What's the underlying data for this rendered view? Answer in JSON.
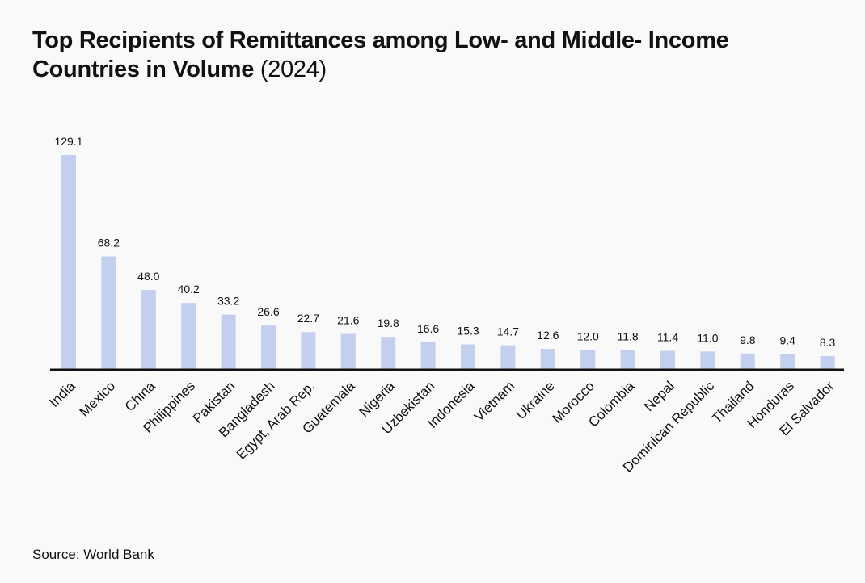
{
  "title": {
    "main": "Top Recipients of Remittances among Low- and Middle- Income Countries in Volume",
    "year": "(2024)"
  },
  "source": "Source: World Bank",
  "colors": {
    "bar": "#c3cfee",
    "axis": "#111111",
    "background": "#f9f9f9"
  },
  "chart_data": {
    "type": "bar",
    "title": "Top Recipients of Remittances among Low- and Middle- Income Countries in Volume (2024)",
    "xlabel": "",
    "ylabel": "",
    "ylim": [
      0,
      129.1
    ],
    "grid": false,
    "categories": [
      "India",
      "Mexico",
      "China",
      "Philippines",
      "Pakistan",
      "Bangladesh",
      "Egypt, Arab Rep.",
      "Guatemala",
      "Nigeria",
      "Uzbekistan",
      "Indonesia",
      "Vietnam",
      "Ukraine",
      "Morocco",
      "Colombia",
      "Nepal",
      "Dominican Republic",
      "Thailand",
      "Honduras",
      "El Salvador"
    ],
    "values": [
      129.1,
      68.2,
      48.0,
      40.2,
      33.2,
      26.6,
      22.7,
      21.6,
      19.8,
      16.6,
      15.3,
      14.7,
      12.6,
      12.0,
      11.8,
      11.4,
      11.0,
      9.8,
      9.4,
      8.3
    ],
    "value_labels": [
      "129.1",
      "68.2",
      "48.0",
      "40.2",
      "33.2",
      "26.6",
      "22.7",
      "21.6",
      "19.8",
      "16.6",
      "15.3",
      "14.7",
      "12.6",
      "12.0",
      "11.8",
      "11.4",
      "11.0",
      "9.8",
      "9.4",
      "8.3"
    ]
  }
}
